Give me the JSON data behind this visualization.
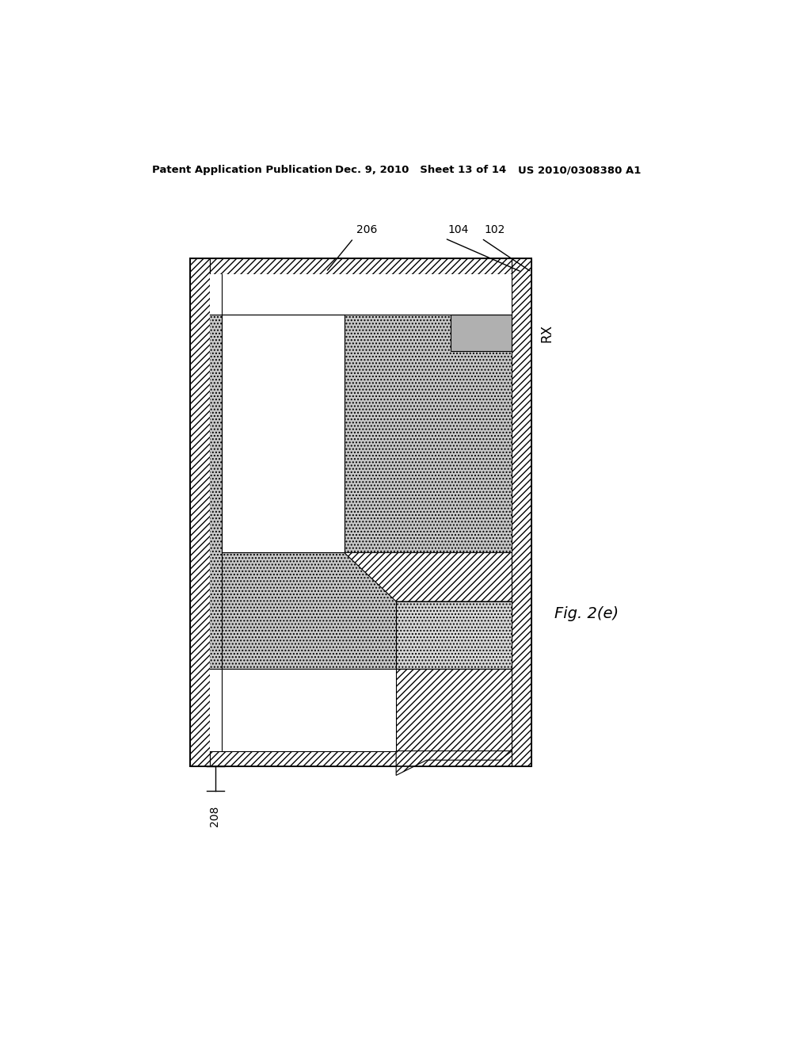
{
  "header_left": "Patent Application Publication",
  "header_mid": "Dec. 9, 2010   Sheet 13 of 14",
  "header_right": "US 2010/0308380 A1",
  "fig_label": "Fig. 2(e)",
  "bg_color": "#ffffff"
}
